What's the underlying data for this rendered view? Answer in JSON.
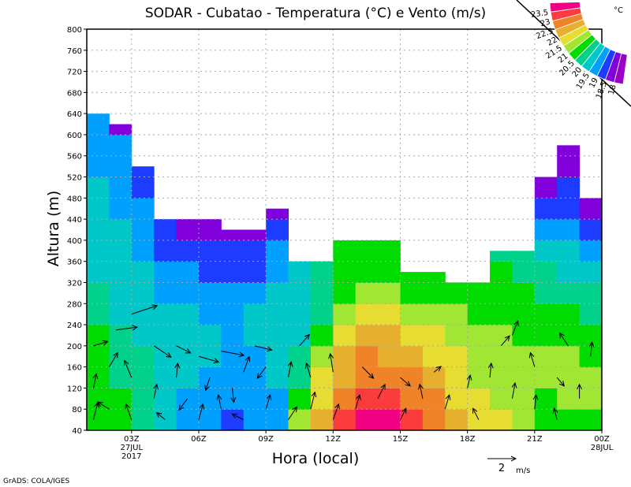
{
  "chart_data": {
    "type": "heatmap",
    "title": "SODAR - Cubatao - Temperatura (°C) e Vento (m/s)",
    "xlabel": "Hora (local)",
    "ylabel": "Altura (m)",
    "xlim": [
      1,
      24
    ],
    "ylim": [
      40,
      800
    ],
    "grid": true,
    "yticks": [
      40,
      80,
      120,
      160,
      200,
      240,
      280,
      320,
      360,
      400,
      440,
      480,
      520,
      560,
      600,
      640,
      680,
      720,
      760,
      800
    ],
    "xticks": [
      {
        "hour": 3,
        "label": "03Z",
        "sub1": "27JUL",
        "sub2": "2017"
      },
      {
        "hour": 6,
        "label": "06Z"
      },
      {
        "hour": 9,
        "label": "09Z"
      },
      {
        "hour": 12,
        "label": "12Z"
      },
      {
        "hour": 15,
        "label": "15Z"
      },
      {
        "hour": 18,
        "label": "18Z"
      },
      {
        "hour": 21,
        "label": "21Z"
      },
      {
        "hour": 24,
        "label": "00Z",
        "sub1": "28JUL"
      }
    ],
    "colorbar": {
      "unit": "°C",
      "levels": [
        18,
        18.5,
        19,
        19.5,
        20,
        20.5,
        21,
        21.5,
        22,
        22.5,
        23,
        23.5
      ],
      "colors": [
        "#9a00c8",
        "#8200dc",
        "#1e3cff",
        "#00a0ff",
        "#00c8c8",
        "#00d28c",
        "#00dc00",
        "#a0e632",
        "#e6dc32",
        "#e6af2d",
        "#f08228",
        "#fa3c3c",
        "#f00082"
      ]
    },
    "row_step_m": 40,
    "columns": [
      {
        "hour": 1,
        "top": 640,
        "temps": [
          20.7,
          20.7,
          20.7,
          20.7,
          20.7,
          20.2,
          20.2,
          19.7,
          19.7,
          19.7,
          19.7,
          19.7,
          19.2,
          19.2,
          19.2
        ]
      },
      {
        "hour": 2,
        "top": 620,
        "temps": [
          20.7,
          20.7,
          20.2,
          20.2,
          20.2,
          19.7,
          19.7,
          19.7,
          19.7,
          19.7,
          19.2,
          19.2,
          19.2,
          19.2,
          18.2
        ]
      },
      {
        "hour": 3,
        "top": 540,
        "temps": [
          20.2,
          20.2,
          20.2,
          20.2,
          19.7,
          19.7,
          19.7,
          19.7,
          19.2,
          19.2,
          19.2,
          18.7,
          18.7
        ]
      },
      {
        "hour": 4,
        "top": 440,
        "temps": [
          19.7,
          19.7,
          19.7,
          19.7,
          19.7,
          19.7,
          19.2,
          19.2,
          18.7,
          18.7
        ]
      },
      {
        "hour": 5,
        "top": 440,
        "temps": [
          19.2,
          19.2,
          19.7,
          19.7,
          19.7,
          19.7,
          19.2,
          19.2,
          18.7,
          18.2
        ]
      },
      {
        "hour": 6,
        "top": 440,
        "temps": [
          19.2,
          19.2,
          19.2,
          19.7,
          19.7,
          19.2,
          19.2,
          18.7,
          18.7,
          18.2
        ]
      },
      {
        "hour": 7,
        "top": 420,
        "temps": [
          18.7,
          19.2,
          19.2,
          19.2,
          19.2,
          19.2,
          19.2,
          18.7,
          18.7,
          18.2
        ]
      },
      {
        "hour": 8,
        "top": 420,
        "temps": [
          19.2,
          19.2,
          19.2,
          19.2,
          19.7,
          19.7,
          19.2,
          18.7,
          18.7,
          18.2
        ]
      },
      {
        "hour": 9,
        "top": 460,
        "temps": [
          19.2,
          19.2,
          19.7,
          19.7,
          19.7,
          19.7,
          19.7,
          19.2,
          19.2,
          18.7,
          18.2
        ]
      },
      {
        "hour": 10,
        "top": 360,
        "temps": [
          21.2,
          20.7,
          20.2,
          20.2,
          19.7,
          19.7,
          19.7,
          19.7
        ]
      },
      {
        "hour": 11,
        "top": 360,
        "temps": [
          22.2,
          21.7,
          21.7,
          21.2,
          20.7,
          20.2,
          20.2,
          20.2
        ]
      },
      {
        "hour": 12,
        "top": 400,
        "temps": [
          23.2,
          22.7,
          22.2,
          22.2,
          21.7,
          21.2,
          20.7,
          20.7,
          20.7
        ]
      },
      {
        "hour": 13,
        "top": 400,
        "temps": [
          23.7,
          23.2,
          22.7,
          22.7,
          22.2,
          21.7,
          21.2,
          20.7,
          20.7
        ]
      },
      {
        "hour": 14,
        "top": 400,
        "temps": [
          23.7,
          23.2,
          22.7,
          22.2,
          22.2,
          21.7,
          21.2,
          20.7,
          20.7
        ]
      },
      {
        "hour": 15,
        "top": 340,
        "temps": [
          23.2,
          22.7,
          22.7,
          22.2,
          21.7,
          21.2,
          20.7,
          20.7
        ]
      },
      {
        "hour": 16,
        "top": 340,
        "temps": [
          22.7,
          22.7,
          22.2,
          21.7,
          21.7,
          21.2,
          20.7,
          20.7
        ]
      },
      {
        "hour": 17,
        "top": 320,
        "temps": [
          22.2,
          21.7,
          21.7,
          21.7,
          21.2,
          21.2,
          20.7
        ]
      },
      {
        "hour": 18,
        "top": 320,
        "temps": [
          21.7,
          21.7,
          21.2,
          21.2,
          21.2,
          20.7,
          20.7
        ]
      },
      {
        "hour": 19,
        "top": 380,
        "temps": [
          21.7,
          21.2,
          21.2,
          21.2,
          21.2,
          20.7,
          20.7,
          20.7,
          20.2
        ]
      },
      {
        "hour": 20,
        "top": 380,
        "temps": [
          21.2,
          21.2,
          21.2,
          21.2,
          20.7,
          20.7,
          20.7,
          20.2,
          20.2
        ]
      },
      {
        "hour": 21,
        "top": 520,
        "temps": [
          20.7,
          20.7,
          21.2,
          21.2,
          20.7,
          20.7,
          20.2,
          20.2,
          19.7,
          19.2,
          18.7,
          18.2
        ]
      },
      {
        "hour": 22,
        "top": 580,
        "temps": [
          20.7,
          21.2,
          21.2,
          21.2,
          20.7,
          20.7,
          20.2,
          19.7,
          19.7,
          19.2,
          18.7,
          18.7,
          18.2,
          18.2
        ]
      },
      {
        "hour": 23,
        "top": 480,
        "temps": [
          20.7,
          21.2,
          21.2,
          20.7,
          20.7,
          20.2,
          20.2,
          19.7,
          19.2,
          18.7,
          18.2
        ]
      }
    ],
    "wind_reference": {
      "speed": 2,
      "label": "2",
      "unit": "m/s"
    },
    "wind": [
      [
        1.3,
        60,
        0.3,
        1.2
      ],
      [
        1.3,
        120,
        0.2,
        1.0
      ],
      [
        1.3,
        200,
        1.0,
        0.3
      ],
      [
        2,
        80,
        -0.8,
        0.5
      ],
      [
        2,
        160,
        0.6,
        1.0
      ],
      [
        2.3,
        230,
        1.5,
        0.2
      ],
      [
        3,
        60,
        -0.4,
        1.1
      ],
      [
        3,
        140,
        -0.5,
        1.2
      ],
      [
        3,
        260,
        1.8,
        0.6
      ],
      [
        4,
        100,
        0.2,
        1.0
      ],
      [
        4,
        200,
        1.2,
        -0.8
      ],
      [
        4.5,
        60,
        -0.6,
        0.5
      ],
      [
        5,
        140,
        0.1,
        1.0
      ],
      [
        5,
        200,
        1.0,
        -0.5
      ],
      [
        5.5,
        100,
        -0.6,
        -0.8
      ],
      [
        6,
        60,
        0.3,
        1.1
      ],
      [
        6,
        180,
        1.4,
        -0.4
      ],
      [
        6.5,
        140,
        -0.3,
        -0.9
      ],
      [
        7,
        80,
        -0.2,
        1.0
      ],
      [
        7,
        190,
        1.6,
        -0.3
      ],
      [
        7.5,
        120,
        0.1,
        -1.0
      ],
      [
        8,
        60,
        -0.8,
        0.4
      ],
      [
        8,
        150,
        0.4,
        1.1
      ],
      [
        8.5,
        200,
        1.2,
        -0.3
      ],
      [
        9,
        80,
        0.3,
        1.0
      ],
      [
        9,
        160,
        -0.6,
        -0.8
      ],
      [
        10,
        60,
        0.6,
        0.9
      ],
      [
        10,
        140,
        0.2,
        1.1
      ],
      [
        10.5,
        200,
        0.7,
        0.8
      ],
      [
        11,
        80,
        0.3,
        1.2
      ],
      [
        11,
        140,
        -0.3,
        1.0
      ],
      [
        12,
        60,
        0.4,
        1.1
      ],
      [
        12,
        150,
        -0.2,
        1.3
      ],
      [
        13,
        80,
        0.3,
        1.0
      ],
      [
        13.3,
        160,
        0.8,
        -0.8
      ],
      [
        14,
        100,
        0.5,
        1.0
      ],
      [
        15,
        60,
        0.4,
        0.8
      ],
      [
        15,
        140,
        0.7,
        -0.6
      ],
      [
        16,
        100,
        -0.2,
        1.0
      ],
      [
        16.5,
        150,
        0.5,
        0.4
      ],
      [
        17,
        80,
        0.3,
        1.0
      ],
      [
        18,
        120,
        0.2,
        0.9
      ],
      [
        18.5,
        60,
        -0.4,
        0.8
      ],
      [
        19,
        140,
        0.1,
        1.0
      ],
      [
        19.5,
        200,
        0.6,
        0.7
      ],
      [
        20,
        100,
        0.2,
        1.1
      ],
      [
        20,
        220,
        0.4,
        1.0
      ],
      [
        21,
        80,
        0.1,
        1.0
      ],
      [
        21,
        160,
        -0.3,
        1.0
      ],
      [
        22,
        60,
        -0.2,
        0.8
      ],
      [
        22,
        140,
        0.5,
        -0.6
      ],
      [
        22.5,
        200,
        -0.6,
        0.9
      ],
      [
        23,
        100,
        0.0,
        1.0
      ],
      [
        23.5,
        180,
        0.1,
        1.0
      ]
    ],
    "footer": "GrADS: COLA/IGES"
  }
}
